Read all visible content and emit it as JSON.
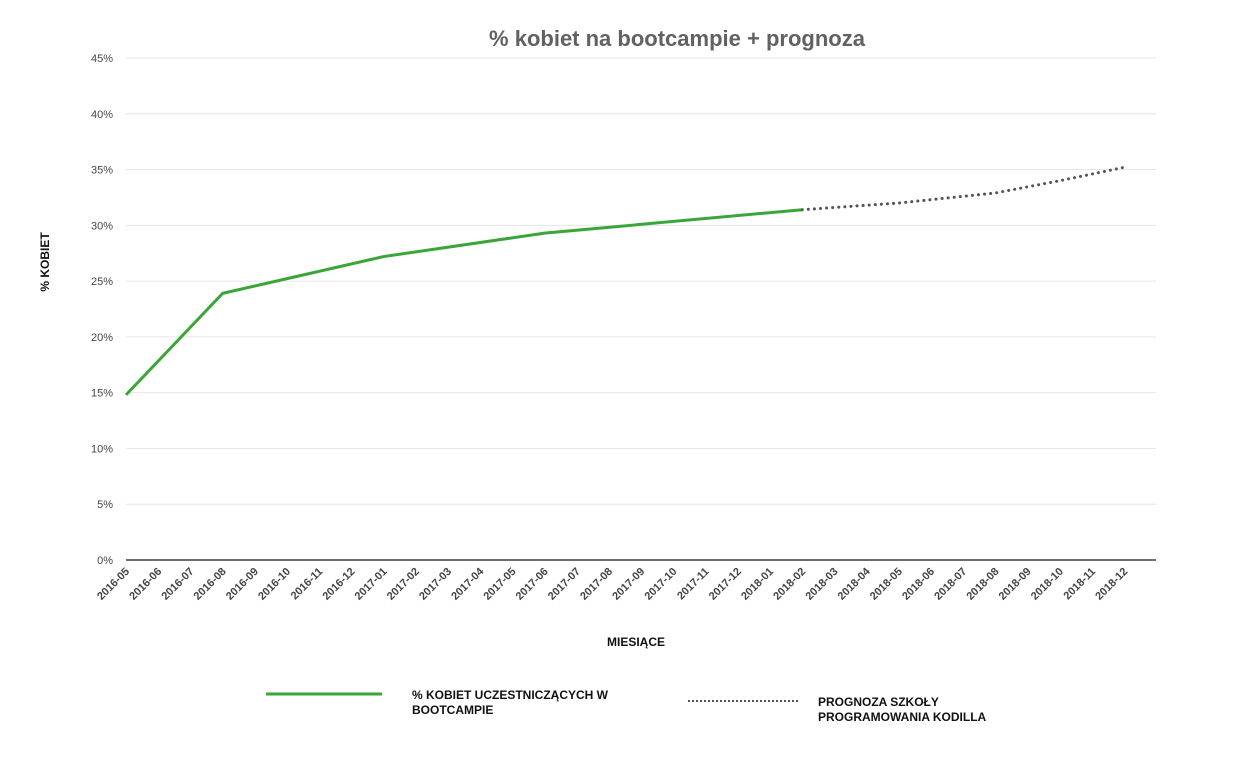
{
  "chart_data": {
    "type": "line",
    "title": "% kobiet na bootcampie + prognoza",
    "xlabel": "MIESIĄCE",
    "ylabel": "% KOBIET",
    "ylim": [
      0,
      45
    ],
    "ytick_labels": [
      "0%",
      "5%",
      "10%",
      "15%",
      "20%",
      "25%",
      "30%",
      "35%",
      "40%",
      "45%"
    ],
    "categories": [
      "2016-05",
      "2016-06",
      "2016-07",
      "2016-08",
      "2016-09",
      "2016-10",
      "2016-11",
      "2016-12",
      "2017-01",
      "2017-02",
      "2017-03",
      "2017-04",
      "2017-05",
      "2017-06",
      "2017-07",
      "2017-08",
      "2017-09",
      "2017-10",
      "2017-11",
      "2017-12",
      "2018-01",
      "2018-02",
      "2018-03",
      "2018-04",
      "2018-05",
      "2018-06",
      "2018-07",
      "2018-08",
      "2018-09",
      "2018-10",
      "2018-11",
      "2018-12"
    ],
    "grid": true,
    "legend_position": "bottom",
    "series": [
      {
        "name": "% KOBIET UCZESTNICZĄCYCH W BOOTCAMPIE",
        "style": "solid",
        "color": "#3aa63a",
        "points": [
          {
            "x": "2016-05",
            "y": 14.8
          },
          {
            "x": "2016-08",
            "y": 23.9
          },
          {
            "x": "2017-01",
            "y": 27.2
          },
          {
            "x": "2017-06",
            "y": 29.3
          },
          {
            "x": "2018-02",
            "y": 31.4
          }
        ]
      },
      {
        "name": "PROGNOZA SZKOŁY PROGRAMOWANIA KODILLA",
        "style": "dotted",
        "color": "#555555",
        "points": [
          {
            "x": "2018-02",
            "y": 31.4
          },
          {
            "x": "2018-05",
            "y": 32.0
          },
          {
            "x": "2018-08",
            "y": 32.9
          },
          {
            "x": "2018-10",
            "y": 34.0
          },
          {
            "x": "2018-12",
            "y": 35.2
          }
        ]
      }
    ]
  }
}
